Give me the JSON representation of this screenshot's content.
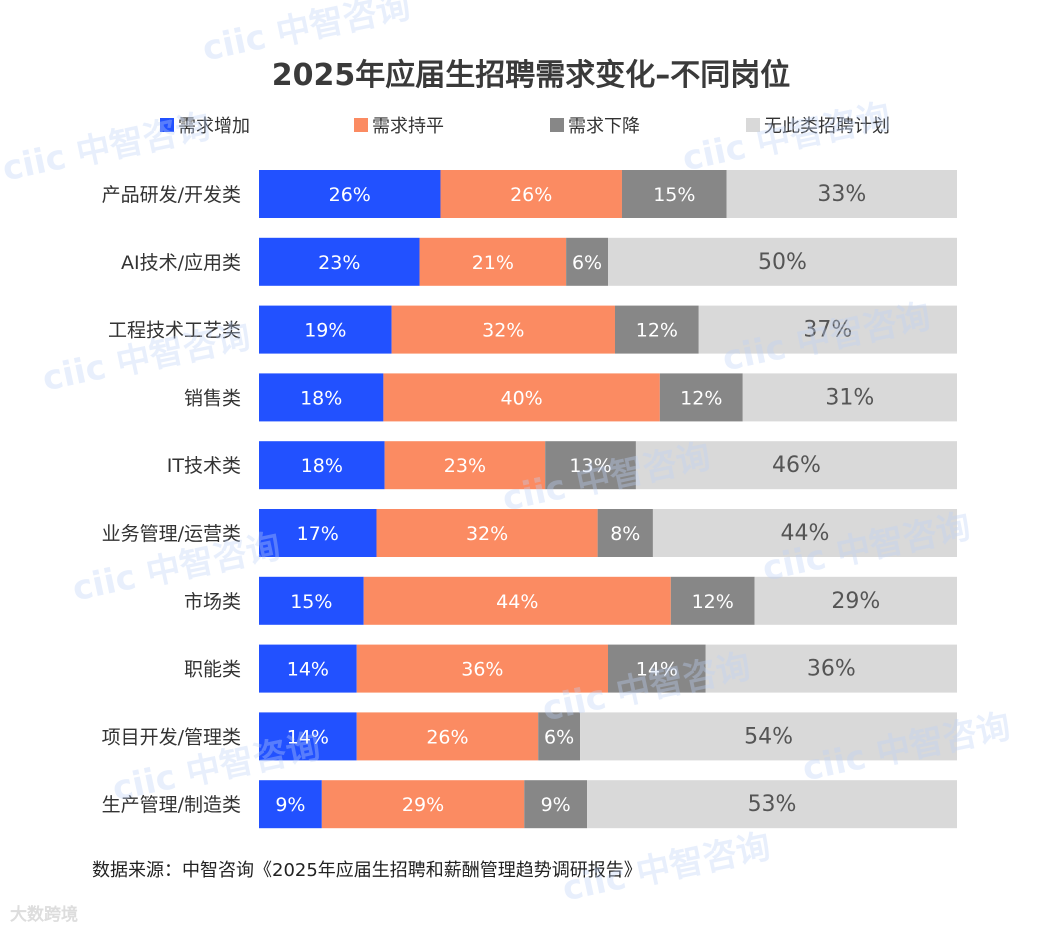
{
  "chart_data": {
    "type": "bar",
    "orientation": "horizontal",
    "stacked": true,
    "title": "2025年应届生招聘需求变化–不同岗位",
    "categories": [
      "产品研发/开发类",
      "AI技术/应用类",
      "工程技术工艺类",
      "销售类",
      "IT技术类",
      "业务管理/运营类",
      "市场类",
      "职能类",
      "项目开发/管理类",
      "生产管理/制造类"
    ],
    "series": [
      {
        "name": "需求增加",
        "color": "#2251ff",
        "values": [
          26,
          23,
          19,
          18,
          18,
          17,
          15,
          14,
          14,
          9
        ]
      },
      {
        "name": "需求持平",
        "color": "#fb8b62",
        "values": [
          26,
          21,
          32,
          40,
          23,
          32,
          44,
          36,
          26,
          29
        ]
      },
      {
        "name": "需求下降",
        "color": "#878787",
        "values": [
          15,
          6,
          12,
          12,
          13,
          8,
          12,
          14,
          6,
          9
        ]
      },
      {
        "name": "无此类招聘计划",
        "color": "#d9d9d9",
        "values": [
          33,
          50,
          37,
          31,
          46,
          44,
          29,
          36,
          54,
          53
        ]
      }
    ],
    "value_suffix": "%",
    "legend_position": "top",
    "grid": false
  },
  "source": "数据来源：中智咨询《2025年应届生招聘和薪酬管理趋势调研报告》",
  "watermark": "ciic 中智咨询",
  "footer_logo": "大数跨境"
}
